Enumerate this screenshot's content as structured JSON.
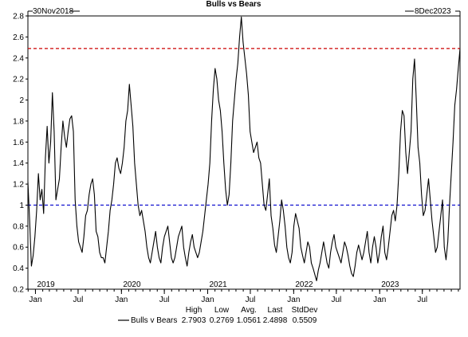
{
  "chart_data": {
    "type": "line",
    "title": "Bulls vs Bears",
    "start_label": "30Nov2018",
    "end_label": "8Dec2023",
    "ylim": [
      0.2,
      2.8
    ],
    "y_ticks": [
      "0.2",
      "0.4",
      "0.6",
      "0.8",
      "1",
      "1.2",
      "1.4",
      "1.6",
      "1.8",
      "2",
      "2.2",
      "2.4",
      "2.6",
      "2.8"
    ],
    "x_ticks": [
      "Jan",
      "Jul",
      "Jan",
      "Jul",
      "Jan",
      "Jul",
      "Jan",
      "Jul",
      "Jan",
      "Jul"
    ],
    "year_labels": [
      "2019",
      "2020",
      "2021",
      "2022",
      "2023"
    ],
    "reference_lines": [
      {
        "value": 2.49,
        "color": "#cc0000",
        "style": "dashed"
      },
      {
        "value": 1.0,
        "color": "#0000cc",
        "style": "dashed"
      }
    ],
    "series": [
      {
        "name": "Bulls v Bears",
        "color": "#000000",
        "start_date": "2018-11-30",
        "step": "weekly",
        "values": [
          1.22,
          0.85,
          0.42,
          0.52,
          0.7,
          0.95,
          1.3,
          1.05,
          1.15,
          0.92,
          1.45,
          1.75,
          1.4,
          1.6,
          2.07,
          1.7,
          1.05,
          1.15,
          1.25,
          1.55,
          1.8,
          1.65,
          1.55,
          1.7,
          1.82,
          1.85,
          1.7,
          1.05,
          0.8,
          0.65,
          0.6,
          0.55,
          0.7,
          0.9,
          0.95,
          1.1,
          1.2,
          1.25,
          1.1,
          0.75,
          0.7,
          0.55,
          0.5,
          0.5,
          0.45,
          0.6,
          0.75,
          0.95,
          1.05,
          1.2,
          1.4,
          1.45,
          1.35,
          1.3,
          1.4,
          1.55,
          1.8,
          1.9,
          2.15,
          1.95,
          1.75,
          1.4,
          1.2,
          1.0,
          0.9,
          0.95,
          0.85,
          0.75,
          0.6,
          0.5,
          0.45,
          0.55,
          0.65,
          0.75,
          0.6,
          0.5,
          0.45,
          0.6,
          0.7,
          0.75,
          0.8,
          0.65,
          0.5,
          0.45,
          0.5,
          0.6,
          0.7,
          0.75,
          0.8,
          0.6,
          0.5,
          0.42,
          0.55,
          0.65,
          0.72,
          0.6,
          0.55,
          0.5,
          0.55,
          0.65,
          0.75,
          0.9,
          1.05,
          1.2,
          1.4,
          1.8,
          2.1,
          2.3,
          2.2,
          2.0,
          1.9,
          1.7,
          1.4,
          1.15,
          1.0,
          1.1,
          1.4,
          1.8,
          2.0,
          2.2,
          2.35,
          2.6,
          2.79,
          2.55,
          2.4,
          2.25,
          2.05,
          1.7,
          1.6,
          1.5,
          1.55,
          1.6,
          1.45,
          1.4,
          1.2,
          1.0,
          0.95,
          1.1,
          1.25,
          0.9,
          0.78,
          0.62,
          0.55,
          0.7,
          0.85,
          1.05,
          0.95,
          0.8,
          0.6,
          0.5,
          0.45,
          0.55,
          0.8,
          0.92,
          0.85,
          0.78,
          0.6,
          0.52,
          0.45,
          0.55,
          0.65,
          0.6,
          0.45,
          0.4,
          0.34,
          0.28,
          0.38,
          0.45,
          0.55,
          0.65,
          0.55,
          0.45,
          0.4,
          0.55,
          0.65,
          0.72,
          0.6,
          0.55,
          0.5,
          0.45,
          0.55,
          0.65,
          0.6,
          0.52,
          0.42,
          0.35,
          0.32,
          0.42,
          0.55,
          0.62,
          0.55,
          0.48,
          0.55,
          0.65,
          0.75,
          0.55,
          0.45,
          0.6,
          0.7,
          0.6,
          0.45,
          0.55,
          0.7,
          0.8,
          0.55,
          0.48,
          0.6,
          0.75,
          0.9,
          0.95,
          0.85,
          1.0,
          1.3,
          1.7,
          1.9,
          1.85,
          1.5,
          1.3,
          1.5,
          1.7,
          2.2,
          2.39,
          2.0,
          1.55,
          1.4,
          1.1,
          0.9,
          0.95,
          1.1,
          1.25,
          1.05,
          0.85,
          0.7,
          0.55,
          0.6,
          0.75,
          0.9,
          1.05,
          0.6,
          0.48,
          0.65,
          1.0,
          1.3,
          1.6,
          1.95,
          2.1,
          2.3,
          2.49
        ]
      }
    ],
    "stats": {
      "headers": [
        "High",
        "Low",
        "Avg.",
        "Last",
        "StdDev"
      ],
      "values": [
        "2.7903",
        "0.2769",
        "1.0561",
        "2.4898",
        "0.5509"
      ]
    }
  }
}
